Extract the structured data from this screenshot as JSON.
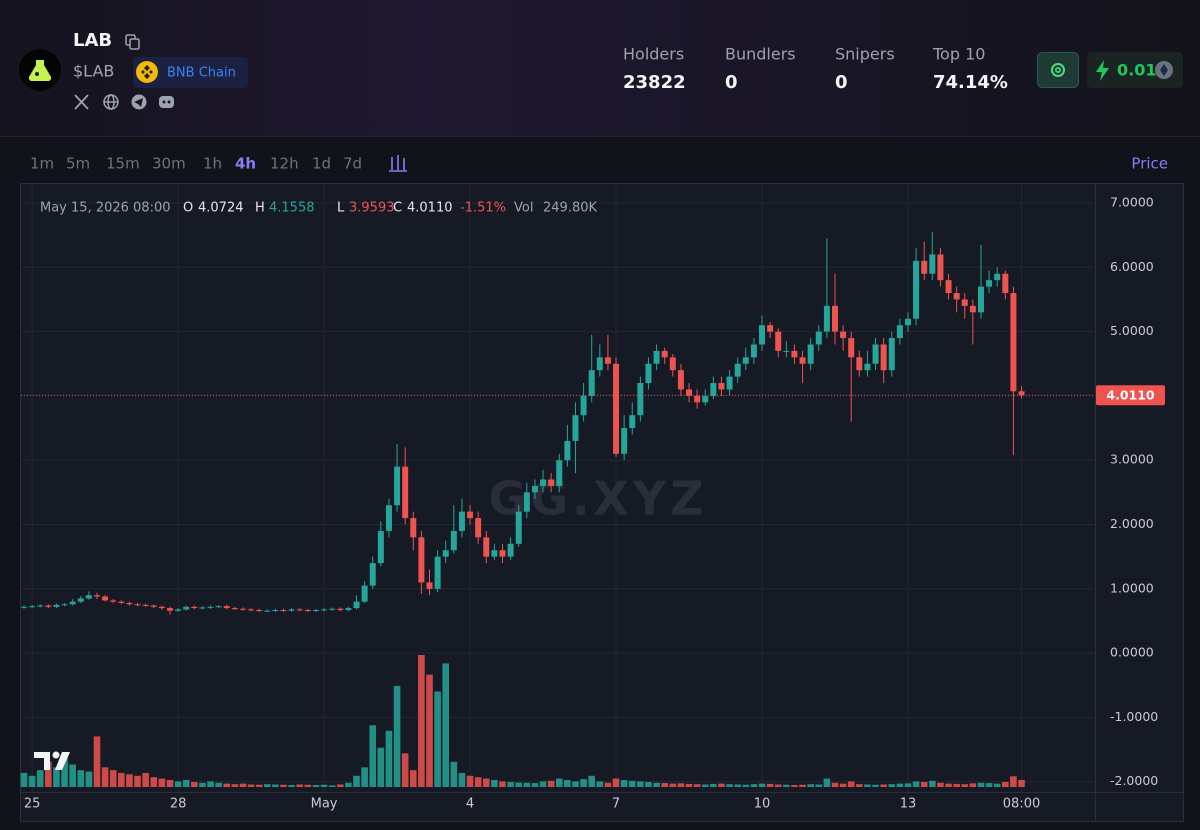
{
  "header": {
    "name": "LAB",
    "ticker": "$LAB",
    "chain": "BNB Chain",
    "stats": [
      {
        "label": "Holders",
        "value": "23822"
      },
      {
        "label": "Bundlers",
        "value": "0"
      },
      {
        "label": "Snipers",
        "value": "0"
      },
      {
        "label": "Top 10",
        "value": "74.14%"
      }
    ],
    "balance": "0.01"
  },
  "toolbar": {
    "intervals": [
      "1m",
      "5m",
      "15m",
      "30m",
      "1h",
      "4h",
      "12h",
      "1d",
      "7d"
    ],
    "active": 5,
    "scale_label": "Price"
  },
  "chart_data": {
    "type": "candlestick",
    "watermark": "GG.XYZ",
    "legend": {
      "date": "May 15, 2026 08:00",
      "open_label": "O",
      "open": "4.0724",
      "high_label": "H",
      "high": "4.1558",
      "low_label": "L",
      "low": "3.9593",
      "close_label": "C",
      "close": "4.0110",
      "change": "-1.51%",
      "volume_label": "Vol",
      "volume": "249.80K"
    },
    "last_price_label": "4.0110",
    "colors": {
      "up": "#26a69a",
      "down": "#ef5350"
    },
    "grid": true,
    "ylim": [
      -2.16,
      7.28
    ],
    "yticks": [
      {
        "value": 7,
        "label": "7.0000"
      },
      {
        "value": 6,
        "label": "6.0000"
      },
      {
        "value": 5,
        "label": "5.0000"
      },
      {
        "value": 4,
        "label": "4.0000"
      },
      {
        "value": 3,
        "label": "3.0000"
      },
      {
        "value": 2,
        "label": "2.0000"
      },
      {
        "value": 1,
        "label": "1.0000"
      },
      {
        "value": 0,
        "label": "0.0000"
      },
      {
        "value": -1,
        "label": "-1.0000"
      },
      {
        "value": -2,
        "label": "-2.0000"
      }
    ],
    "categories": [
      null,
      "25",
      null,
      null,
      null,
      null,
      null,
      null,
      null,
      null,
      null,
      null,
      null,
      null,
      null,
      null,
      null,
      null,
      null,
      "28",
      null,
      null,
      null,
      null,
      null,
      null,
      null,
      null,
      null,
      null,
      null,
      null,
      null,
      null,
      null,
      null,
      null,
      "May",
      null,
      null,
      null,
      null,
      null,
      null,
      null,
      null,
      null,
      null,
      null,
      null,
      null,
      null,
      null,
      null,
      null,
      "4",
      null,
      null,
      null,
      null,
      null,
      null,
      null,
      null,
      null,
      null,
      null,
      null,
      null,
      null,
      null,
      null,
      null,
      "7",
      null,
      null,
      null,
      null,
      null,
      null,
      null,
      null,
      null,
      null,
      null,
      null,
      null,
      null,
      null,
      null,
      null,
      "10",
      null,
      null,
      null,
      null,
      null,
      null,
      null,
      null,
      null,
      null,
      null,
      null,
      null,
      null,
      null,
      null,
      null,
      "13",
      null,
      null,
      null,
      null,
      null,
      null,
      null,
      null,
      null,
      null,
      null,
      null,
      null,
      "08:00"
    ],
    "open": [
      0.71,
      0.72,
      0.73,
      0.74,
      0.72,
      0.75,
      0.76,
      0.8,
      0.85,
      0.9,
      0.88,
      0.82,
      0.8,
      0.78,
      0.76,
      0.75,
      0.74,
      0.72,
      0.7,
      0.66,
      0.68,
      0.72,
      0.7,
      0.71,
      0.72,
      0.73,
      0.7,
      0.69,
      0.68,
      0.67,
      0.66,
      0.66,
      0.67,
      0.66,
      0.68,
      0.67,
      0.66,
      0.67,
      0.68,
      0.69,
      0.67,
      0.7,
      0.8,
      1.05,
      1.4,
      1.9,
      2.3,
      2.9,
      2.1,
      1.8,
      1.1,
      1.0,
      1.5,
      1.6,
      1.9,
      2.2,
      2.1,
      1.8,
      1.5,
      1.6,
      1.5,
      1.7,
      2.2,
      2.5,
      2.6,
      2.7,
      2.6,
      3.0,
      3.3,
      3.7,
      4.0,
      4.4,
      4.6,
      4.5,
      3.1,
      3.5,
      3.7,
      4.2,
      4.5,
      4.7,
      4.6,
      4.4,
      4.1,
      4.0,
      3.9,
      4.0,
      4.2,
      4.1,
      4.3,
      4.5,
      4.6,
      4.8,
      5.1,
      5.0,
      4.7,
      4.7,
      4.6,
      4.5,
      4.8,
      5.0,
      5.4,
      5.0,
      4.9,
      4.6,
      4.4,
      4.5,
      4.8,
      4.4,
      4.9,
      5.1,
      5.2,
      6.1,
      5.9,
      6.2,
      5.8,
      5.6,
      5.5,
      5.4,
      5.3,
      5.7,
      5.8,
      5.9,
      5.6,
      4.0724
    ],
    "high": [
      0.74,
      0.75,
      0.76,
      0.76,
      0.77,
      0.78,
      0.84,
      0.89,
      0.96,
      0.94,
      0.9,
      0.84,
      0.82,
      0.8,
      0.78,
      0.77,
      0.76,
      0.74,
      0.72,
      0.7,
      0.74,
      0.74,
      0.73,
      0.74,
      0.75,
      0.75,
      0.72,
      0.71,
      0.7,
      0.69,
      0.68,
      0.69,
      0.69,
      0.7,
      0.7,
      0.69,
      0.69,
      0.7,
      0.71,
      0.71,
      0.72,
      0.9,
      1.12,
      1.5,
      2.05,
      2.4,
      3.25,
      3.2,
      2.2,
      1.9,
      1.3,
      1.6,
      1.75,
      2.3,
      2.4,
      2.3,
      2.2,
      1.9,
      1.7,
      1.7,
      1.8,
      2.3,
      2.65,
      2.7,
      2.85,
      2.8,
      3.1,
      3.55,
      3.9,
      4.2,
      4.95,
      4.8,
      4.95,
      4.6,
      3.7,
      3.9,
      4.3,
      4.6,
      4.8,
      4.75,
      4.65,
      4.5,
      4.2,
      4.1,
      4.1,
      4.3,
      4.3,
      4.4,
      4.6,
      4.75,
      4.9,
      5.25,
      5.15,
      5.05,
      4.85,
      4.8,
      4.7,
      4.9,
      5.1,
      6.45,
      5.9,
      5.1,
      5.0,
      4.7,
      4.7,
      4.9,
      4.9,
      5.0,
      5.2,
      5.3,
      6.3,
      6.4,
      6.55,
      6.3,
      5.9,
      5.7,
      5.6,
      5.5,
      6.35,
      5.95,
      6.0,
      5.95,
      5.7,
      4.1558
    ],
    "low": [
      0.69,
      0.7,
      0.71,
      0.7,
      0.7,
      0.73,
      0.74,
      0.78,
      0.83,
      0.84,
      0.8,
      0.78,
      0.76,
      0.74,
      0.73,
      0.72,
      0.7,
      0.67,
      0.6,
      0.64,
      0.66,
      0.68,
      0.68,
      0.69,
      0.7,
      0.68,
      0.67,
      0.66,
      0.65,
      0.64,
      0.64,
      0.64,
      0.64,
      0.64,
      0.65,
      0.64,
      0.64,
      0.65,
      0.66,
      0.65,
      0.65,
      0.68,
      0.78,
      1.0,
      1.35,
      1.8,
      2.2,
      2.0,
      1.6,
      0.92,
      0.9,
      0.95,
      1.4,
      1.55,
      1.8,
      2.0,
      1.7,
      1.4,
      1.45,
      1.4,
      1.45,
      1.65,
      2.1,
      2.4,
      2.5,
      2.5,
      2.5,
      2.9,
      2.8,
      3.6,
      3.9,
      4.3,
      4.4,
      3.05,
      3.0,
      3.4,
      3.6,
      4.1,
      4.4,
      4.5,
      4.3,
      4.0,
      3.9,
      3.8,
      3.85,
      3.95,
      4.0,
      4.0,
      4.2,
      4.4,
      4.5,
      4.7,
      4.9,
      4.6,
      4.6,
      4.5,
      4.2,
      4.4,
      4.7,
      4.9,
      4.8,
      4.7,
      3.6,
      4.3,
      4.3,
      4.4,
      4.2,
      4.3,
      4.8,
      5.0,
      5.1,
      5.8,
      5.8,
      5.7,
      5.5,
      5.3,
      5.2,
      4.8,
      5.2,
      5.6,
      5.7,
      5.5,
      3.08,
      3.9593
    ],
    "close": [
      0.72,
      0.73,
      0.74,
      0.72,
      0.75,
      0.76,
      0.8,
      0.85,
      0.9,
      0.88,
      0.82,
      0.8,
      0.78,
      0.76,
      0.75,
      0.74,
      0.72,
      0.7,
      0.66,
      0.68,
      0.72,
      0.7,
      0.71,
      0.72,
      0.73,
      0.7,
      0.69,
      0.68,
      0.67,
      0.66,
      0.66,
      0.67,
      0.66,
      0.68,
      0.67,
      0.66,
      0.67,
      0.68,
      0.69,
      0.67,
      0.7,
      0.8,
      1.05,
      1.4,
      1.9,
      2.3,
      2.9,
      2.1,
      1.8,
      1.1,
      1.0,
      1.5,
      1.6,
      1.9,
      2.2,
      2.1,
      1.8,
      1.5,
      1.6,
      1.5,
      1.7,
      2.2,
      2.5,
      2.6,
      2.7,
      2.6,
      3.0,
      3.3,
      3.7,
      4.0,
      4.4,
      4.6,
      4.5,
      3.1,
      3.5,
      3.7,
      4.2,
      4.5,
      4.7,
      4.6,
      4.4,
      4.1,
      4.0,
      3.9,
      4.0,
      4.2,
      4.1,
      4.3,
      4.5,
      4.6,
      4.8,
      5.1,
      5.0,
      4.7,
      4.7,
      4.6,
      4.5,
      4.8,
      5.0,
      5.4,
      5.0,
      4.9,
      4.6,
      4.4,
      4.5,
      4.8,
      4.4,
      4.9,
      5.1,
      5.2,
      6.1,
      5.9,
      6.2,
      5.8,
      5.6,
      5.5,
      5.4,
      5.3,
      5.7,
      5.8,
      5.9,
      5.6,
      4.0724,
      4.011
    ],
    "volume": [
      500,
      400,
      600,
      900,
      700,
      1100,
      800,
      600,
      550,
      1800,
      700,
      600,
      500,
      450,
      400,
      500,
      350,
      300,
      250,
      200,
      250,
      180,
      150,
      200,
      150,
      120,
      100,
      120,
      90,
      80,
      100,
      90,
      80,
      70,
      90,
      80,
      70,
      80,
      60,
      90,
      150,
      400,
      700,
      2200,
      1400,
      2000,
      3600,
      1200,
      600,
      4700,
      4000,
      3400,
      4400,
      900,
      500,
      400,
      350,
      300,
      250,
      200,
      180,
      160,
      150,
      140,
      200,
      220,
      300,
      250,
      200,
      280,
      400,
      200,
      150,
      300,
      250,
      220,
      200,
      180,
      150,
      140,
      120,
      130,
      110,
      100,
      90,
      110,
      120,
      100,
      90,
      80,
      100,
      120,
      110,
      90,
      80,
      70,
      80,
      100,
      90,
      300,
      150,
      120,
      200,
      100,
      90,
      80,
      90,
      100,
      120,
      130,
      200,
      180,
      220,
      150,
      120,
      110,
      100,
      130,
      150,
      140,
      120,
      180,
      380,
      249.8
    ]
  }
}
